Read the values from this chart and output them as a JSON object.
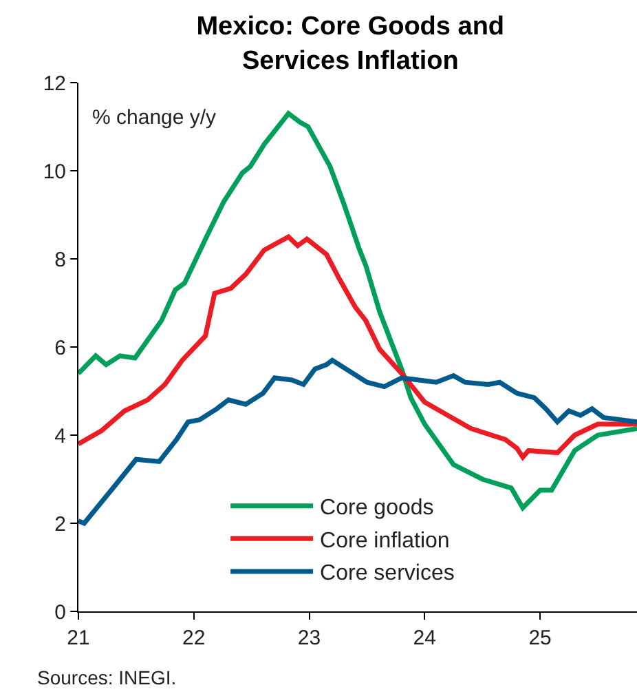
{
  "chart_data": {
    "type": "line",
    "title": "Mexico: Core Goods and\nServices Inflation",
    "ylabel": "% change y/y",
    "annotations": [
      "Sources: INEGI."
    ],
    "xlim": [
      21,
      25.84
    ],
    "xticks": [
      21,
      22,
      23,
      24,
      25
    ],
    "ylim": [
      0,
      12
    ],
    "yticks": [
      0,
      2,
      4,
      6,
      8,
      10,
      12
    ],
    "grid": false,
    "legend": "bottom",
    "marker": "none",
    "line_style": "solid",
    "series": [
      {
        "name": "Core goods",
        "color": "#00a05a",
        "x": [
          21.0,
          21.15,
          21.24,
          21.36,
          21.49,
          21.72,
          21.84,
          21.92,
          22.11,
          22.26,
          22.42,
          22.49,
          22.61,
          22.82,
          22.92,
          22.99,
          23.18,
          23.3,
          23.43,
          23.49,
          23.61,
          23.8,
          23.88,
          24.0,
          24.25,
          24.5,
          24.75,
          24.85,
          25.0,
          25.1,
          25.3,
          25.5,
          25.84
        ],
        "values": [
          5.4,
          5.8,
          5.6,
          5.8,
          5.75,
          6.6,
          7.3,
          7.45,
          8.5,
          9.3,
          9.95,
          10.1,
          10.6,
          11.3,
          11.1,
          11.0,
          10.1,
          9.25,
          8.25,
          7.85,
          6.8,
          5.5,
          4.85,
          4.25,
          3.33,
          3.0,
          2.8,
          2.35,
          2.75,
          2.75,
          3.65,
          4.0,
          4.15
        ]
      },
      {
        "name": "Core inflation",
        "color": "#ec1c24",
        "x": [
          21.0,
          21.2,
          21.4,
          21.6,
          21.75,
          21.9,
          22.1,
          22.18,
          22.32,
          22.45,
          22.61,
          22.82,
          22.9,
          22.98,
          23.15,
          23.26,
          23.4,
          23.49,
          23.61,
          23.8,
          24.0,
          24.2,
          24.4,
          24.7,
          24.8,
          24.85,
          24.9,
          25.15,
          25.3,
          25.5,
          25.84
        ],
        "values": [
          3.8,
          4.1,
          4.55,
          4.8,
          5.15,
          5.7,
          6.25,
          7.22,
          7.33,
          7.65,
          8.2,
          8.5,
          8.3,
          8.45,
          8.1,
          7.55,
          6.9,
          6.6,
          5.95,
          5.4,
          4.75,
          4.45,
          4.15,
          3.9,
          3.7,
          3.5,
          3.65,
          3.6,
          4.0,
          4.25,
          4.25
        ]
      },
      {
        "name": "Core services",
        "color": "#005a8c",
        "x": [
          21.0,
          21.05,
          21.3,
          21.5,
          21.7,
          21.85,
          21.95,
          22.05,
          22.2,
          22.3,
          22.45,
          22.6,
          22.7,
          22.85,
          22.95,
          23.05,
          23.15,
          23.2,
          23.35,
          23.5,
          23.65,
          23.8,
          23.95,
          24.1,
          24.25,
          24.35,
          24.55,
          24.65,
          24.8,
          24.95,
          25.05,
          25.15,
          25.25,
          25.35,
          25.45,
          25.55,
          25.84
        ],
        "values": [
          2.05,
          2.0,
          2.8,
          3.45,
          3.4,
          3.9,
          4.3,
          4.35,
          4.6,
          4.8,
          4.7,
          4.95,
          5.3,
          5.25,
          5.15,
          5.5,
          5.6,
          5.7,
          5.45,
          5.2,
          5.1,
          5.3,
          5.25,
          5.2,
          5.35,
          5.2,
          5.15,
          5.2,
          4.95,
          4.85,
          4.6,
          4.3,
          4.55,
          4.45,
          4.6,
          4.4,
          4.3
        ]
      }
    ]
  }
}
